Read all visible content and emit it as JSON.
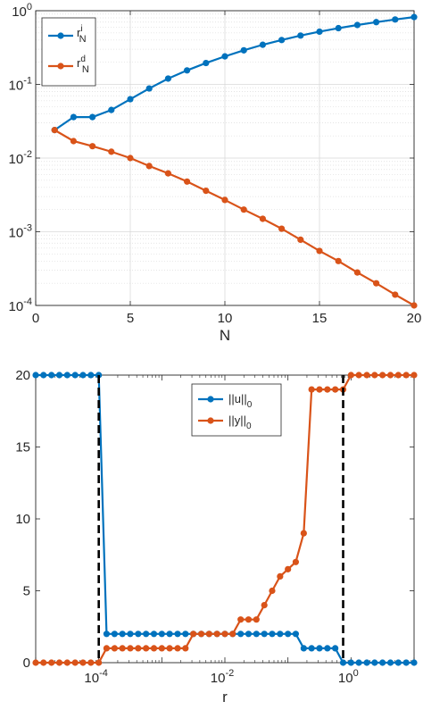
{
  "chart_data": [
    {
      "type": "line",
      "xlabel": "N",
      "ylabel": "",
      "title": "",
      "xlim": [
        0,
        20
      ],
      "ylim": [
        0.0001,
        1
      ],
      "yscale": "log",
      "grid": true,
      "legend_position": "top-left",
      "x_ticks": [
        0,
        5,
        10,
        15,
        20
      ],
      "x_tick_labels": [
        "0",
        "5",
        "10",
        "15",
        "20"
      ],
      "y_ticks": [
        0.0001,
        0.001,
        0.01,
        0.1,
        1
      ],
      "y_tick_labels": [
        {
          "base": "10",
          "exp": "-4"
        },
        {
          "base": "10",
          "exp": "-3"
        },
        {
          "base": "10",
          "exp": "-2"
        },
        {
          "base": "10",
          "exp": "-1"
        },
        {
          "base": "10",
          "exp": "0"
        }
      ],
      "x": [
        1,
        2,
        3,
        4,
        5,
        6,
        7,
        8,
        9,
        10,
        11,
        12,
        13,
        14,
        15,
        16,
        17,
        18,
        19,
        20
      ],
      "series": [
        {
          "legend": {
            "base": "r",
            "sup": "i",
            "sub": "N"
          },
          "color": "#0072BD",
          "values": [
            0.024,
            0.036,
            0.036,
            0.045,
            0.063,
            0.088,
            0.12,
            0.155,
            0.195,
            0.24,
            0.29,
            0.345,
            0.4,
            0.46,
            0.52,
            0.58,
            0.64,
            0.7,
            0.76,
            0.82
          ]
        },
        {
          "legend": {
            "base": "r",
            "sup": "d",
            "sub": "N"
          },
          "color": "#D95319",
          "values": [
            0.024,
            0.017,
            0.0145,
            0.0122,
            0.01,
            0.0078,
            0.0062,
            0.0048,
            0.0036,
            0.0027,
            0.002,
            0.0015,
            0.0011,
            0.00078,
            0.00055,
            0.0004,
            0.00028,
            0.0002,
            0.00014,
            0.0001
          ]
        }
      ]
    },
    {
      "type": "line",
      "xlabel": "r",
      "ylabel": "",
      "title": "",
      "xscale": "log",
      "xlim": [
        1e-05,
        10
      ],
      "ylim": [
        0,
        20
      ],
      "grid": false,
      "legend_position": "top-center",
      "y_ticks": [
        0,
        5,
        10,
        15,
        20
      ],
      "y_tick_labels": [
        "0",
        "5",
        "10",
        "15",
        "20"
      ],
      "x_ticks": [
        0.0001,
        0.01,
        1
      ],
      "x_tick_labels": [
        {
          "base": "10",
          "exp": "-4"
        },
        {
          "base": "10",
          "exp": "-2"
        },
        {
          "base": "10",
          "exp": "0"
        }
      ],
      "vlines": [
        0.0001,
        0.75
      ],
      "x": [
        1e-05,
        1.33e-05,
        1.78e-05,
        2.37e-05,
        3.16e-05,
        4.22e-05,
        5.62e-05,
        7.5e-05,
        0.0001,
        0.000133,
        0.000178,
        0.000237,
        0.000316,
        0.000422,
        0.000562,
        0.00075,
        0.001,
        0.00133,
        0.00178,
        0.00237,
        0.00316,
        0.00422,
        0.00562,
        0.0075,
        0.01,
        0.0133,
        0.0178,
        0.0237,
        0.0316,
        0.0422,
        0.0562,
        0.075,
        0.1,
        0.133,
        0.178,
        0.237,
        0.316,
        0.422,
        0.562,
        0.75,
        1,
        1.33,
        1.78,
        2.37,
        3.16,
        4.22,
        5.62,
        7.5,
        10
      ],
      "series": [
        {
          "legend": {
            "base": "||u||",
            "sub": "0"
          },
          "color": "#0072BD",
          "values": [
            20,
            20,
            20,
            20,
            20,
            20,
            20,
            20,
            20,
            2,
            2,
            2,
            2,
            2,
            2,
            2,
            2,
            2,
            2,
            2,
            2,
            2,
            2,
            2,
            2,
            2,
            2,
            2,
            2,
            2,
            2,
            2,
            2,
            2,
            1,
            1,
            1,
            1,
            1,
            0,
            0,
            0,
            0,
            0,
            0,
            0,
            0,
            0,
            0
          ]
        },
        {
          "legend": {
            "base": "||y||",
            "sub": "0"
          },
          "color": "#D95319",
          "values": [
            0,
            0,
            0,
            0,
            0,
            0,
            0,
            0,
            0,
            1,
            1,
            1,
            1,
            1,
            1,
            1,
            1,
            1,
            1,
            1,
            2,
            2,
            2,
            2,
            2,
            2,
            3,
            3,
            3,
            4,
            5,
            6,
            6.5,
            7,
            9,
            19,
            19,
            19,
            19,
            19,
            20,
            20,
            20,
            20,
            20,
            20,
            20,
            20,
            20
          ]
        }
      ]
    }
  ]
}
